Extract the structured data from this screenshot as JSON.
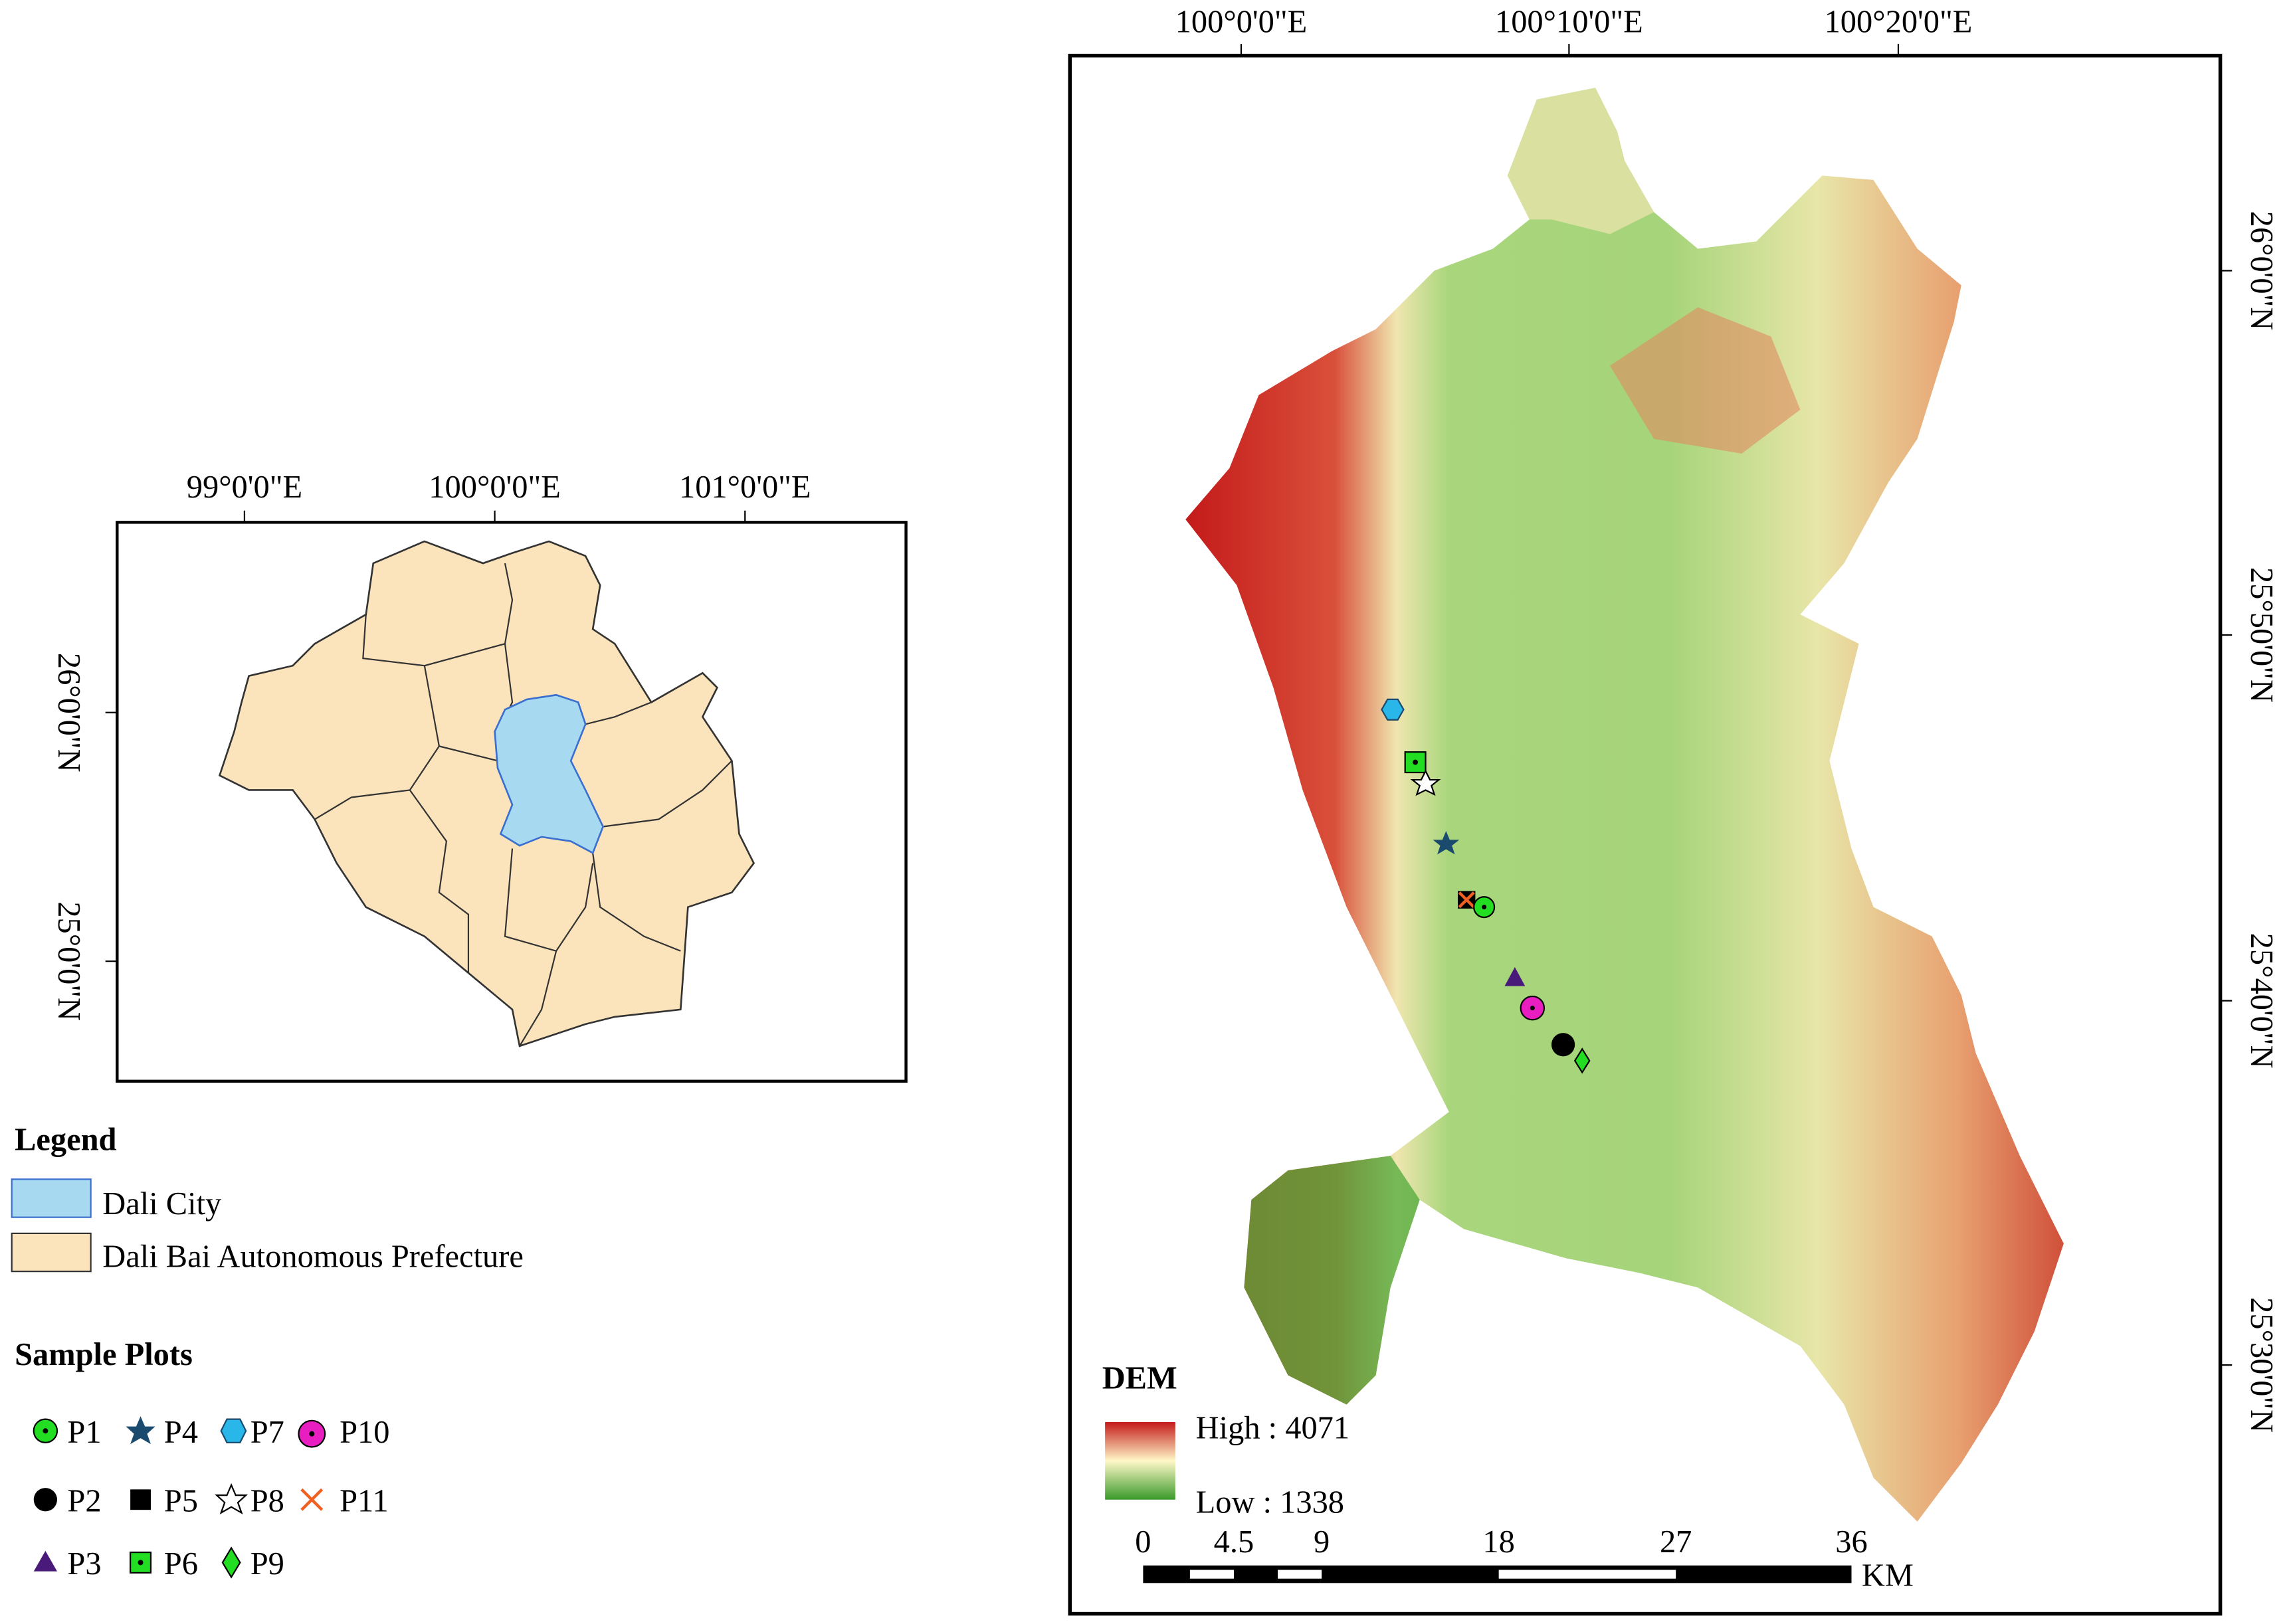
{
  "inset": {
    "lon_labels": [
      "99°0'0\"E",
      "100°0'0\"E",
      "101°0'0\"E"
    ],
    "lat_labels": [
      "26°0'0\"N",
      "25°0'0\"N"
    ]
  },
  "legend": {
    "title": "Legend",
    "items": [
      "Dali City",
      "Dali Bai Autonomous Prefecture"
    ]
  },
  "sample_plots": {
    "title": "Sample Plots",
    "labels": [
      "P1",
      "P2",
      "P3",
      "P4",
      "P5",
      "P6",
      "P7",
      "P8",
      "P9",
      "P10",
      "P11"
    ]
  },
  "main_map": {
    "lon_labels": [
      "100°0'0\"E",
      "100°10'0\"E",
      "100°20'0\"E"
    ],
    "lat_labels": [
      "26°0'0\"N",
      "25°50'0\"N",
      "25°40'0\"N",
      "25°30'0\"N"
    ]
  },
  "dem": {
    "title": "DEM",
    "high": "High : 4071",
    "low": "Low : 1338"
  },
  "scale_bar": {
    "labels": [
      "0",
      "4.5",
      "9",
      "18",
      "27",
      "36"
    ],
    "unit": "KM"
  }
}
